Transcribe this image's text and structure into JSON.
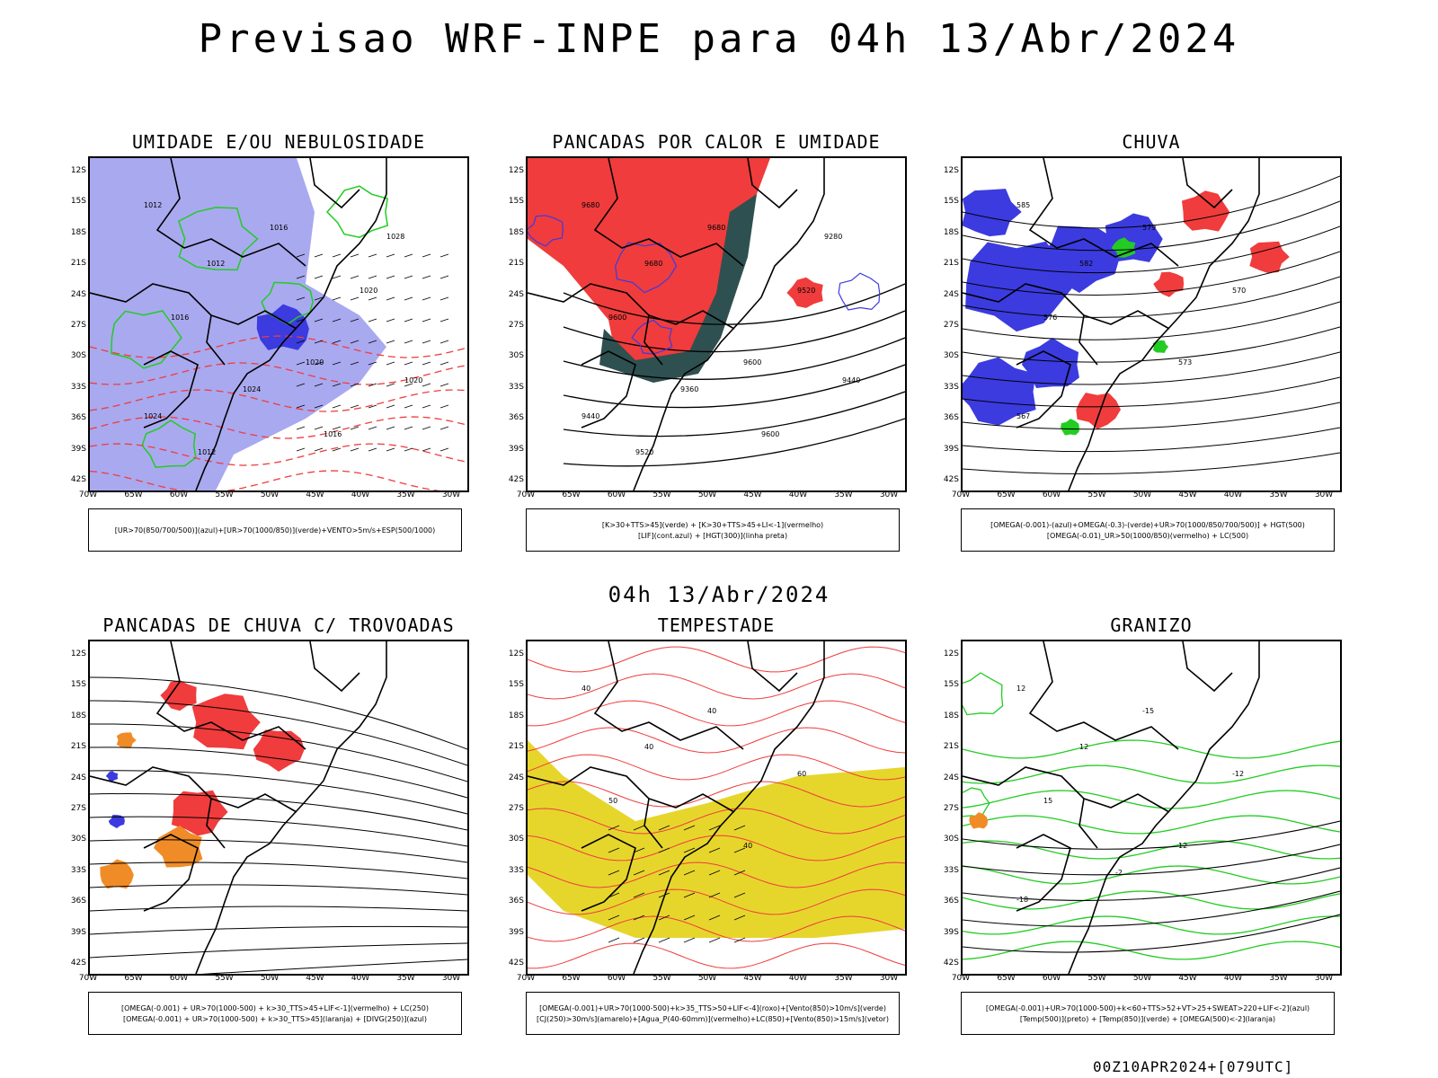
{
  "header": {
    "title": "Previsao WRF-INPE  para 04h 13/Abr/2024",
    "mid_date": "04h 13/Abr/2024",
    "run_stamp": "00Z10APR2024+[079UTC]"
  },
  "axes": {
    "lat_labels": [
      "12S",
      "15S",
      "18S",
      "21S",
      "24S",
      "27S",
      "30S",
      "33S",
      "36S",
      "39S",
      "42S"
    ],
    "lon_labels": [
      "70W",
      "65W",
      "60W",
      "55W",
      "50W",
      "45W",
      "40W",
      "35W",
      "30W"
    ]
  },
  "colors": {
    "blue_humidity": "#a9a9f0",
    "blue_deep": "#3b3be0",
    "green": "#22cc22",
    "red": "#f03c3c",
    "dark_teal": "#2f5050",
    "orange": "#f08c28",
    "yellow": "#e6d62c",
    "black": "#000000"
  },
  "panels": [
    {
      "title": "UMIDADE E/OU NEBULOSIDADE",
      "legend_lines": [
        "[UR>70(850/700/500)](azul)+[UR>70(1000/850)](verde)+VENTO>5m/s+ESP(500/1000)"
      ],
      "contour_labels": [
        "1012",
        "1012",
        "1016",
        "1016",
        "1020",
        "1020",
        "1024",
        "1024",
        "1028",
        "1012",
        "1016",
        "1020"
      ]
    },
    {
      "title": "PANCADAS POR CALOR E UMIDADE",
      "legend_lines": [
        "[K>30+TTS>45](verde)  +  [K>30+TTS>45+LI<-1](vermelho)",
        "[LIF](cont.azul)  +  [HGT(300)](linha preta)"
      ],
      "contour_labels": [
        "9680",
        "9680",
        "9680",
        "9600",
        "9600",
        "9520",
        "9440",
        "9360",
        "9280",
        "9520",
        "9600",
        "9440"
      ]
    },
    {
      "title": "CHUVA",
      "legend_lines": [
        "[OMEGA(-0.001)-(azul)+OMEGA(-0.3)-(verde)+UR>70(1000/850/700/500)]  +  HGT(500)",
        "[OMEGA(-0.01)_UR>50(1000/850)(vermelho)  +  LC(500)"
      ],
      "contour_labels": [
        "585",
        "582",
        "579",
        "576",
        "573",
        "570",
        "567"
      ]
    },
    {
      "title": "PANCADAS DE CHUVA C/ TROVOADAS",
      "legend_lines": [
        "[OMEGA(-0.001)  +  UR>70(1000-500)  +  k>30_TTS>45+LIF<-1](vermelho)  +  LC(250)",
        "[OMEGA(-0.001)  +  UR>70(1000-500)  +  k>30_TTS>45](laranja)  +  [DIVG(250)](azul)"
      ],
      "contour_labels": []
    },
    {
      "title": "TEMPESTADE",
      "legend_lines": [
        "[OMEGA(-0.001)+UR>70(1000-500)+k>35_TTS>50+LIF<-4](roxo)+[Vento(850)>10m/s](verde)",
        "[CJ(250)>30m/s](amarelo)+[Agua_P(40-60mm)](vermelho)+LC(850)+[Vento(850)>15m/s](vetor)"
      ],
      "contour_labels": [
        "40",
        "40",
        "40",
        "50",
        "40",
        "60"
      ]
    },
    {
      "title": "GRANIZO",
      "legend_lines": [
        "[OMEGA(-0.001)+UR>70(1000-500)+k<60+TTS>52+VT>25+SWEAT>220+LIF<-2](azul)",
        "[Temp(500)](preto)  +  [Temp(850)](verde)  +  [OMEGA(500)<-2](laranja)"
      ],
      "contour_labels": [
        "12",
        "12",
        "-15",
        "15",
        "12",
        "-12",
        "-18",
        "-2"
      ]
    }
  ]
}
